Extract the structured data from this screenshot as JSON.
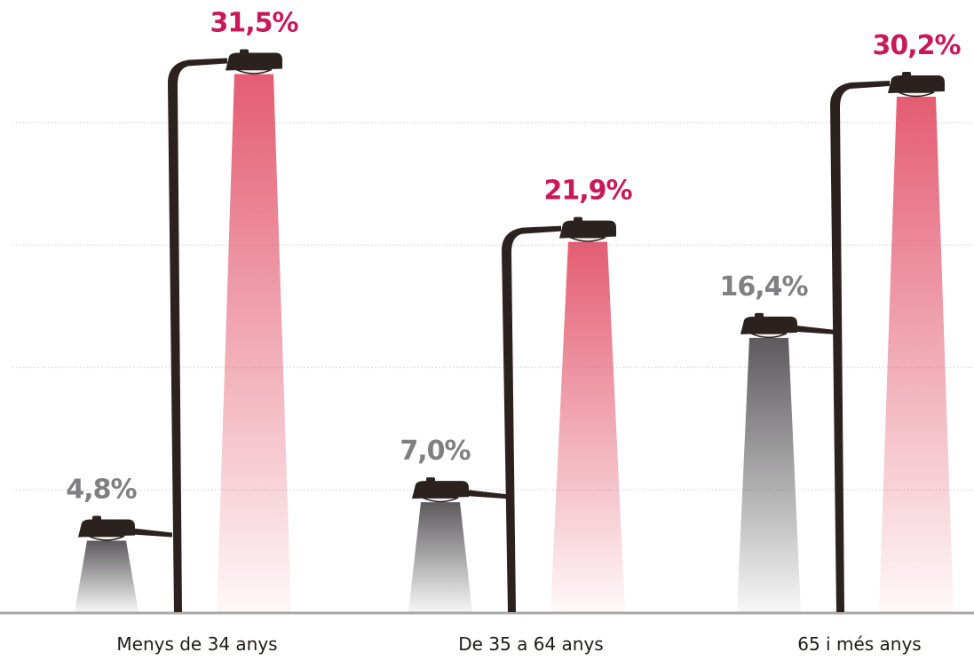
{
  "chart_data": {
    "type": "bar",
    "title": "",
    "xlabel": "",
    "ylabel": "",
    "ylim": [
      0,
      35
    ],
    "grid": true,
    "categories": [
      "Menys de 34 anys",
      "De 35 a 64 anys",
      "65 i més anys"
    ],
    "series": [
      {
        "values": [
          4.8,
          7.0,
          16.4
        ],
        "labels": [
          "4,8%",
          "7,0%",
          "16,4%"
        ]
      },
      {
        "values": [
          31.5,
          21.9,
          30.2
        ],
        "labels": [
          "31,5%",
          "21,9%",
          "30,2%"
        ]
      }
    ]
  },
  "colors": {
    "pole": "#2b2220",
    "grey_light": "#5c5a5c",
    "grey_label": "#807f82",
    "red_light": "#e2546a",
    "red_label": "#c8195a",
    "grid": "#c9c9c9",
    "baseline": "#a7a7a7"
  },
  "icons": {
    "mark": "street-lamp-icon"
  }
}
